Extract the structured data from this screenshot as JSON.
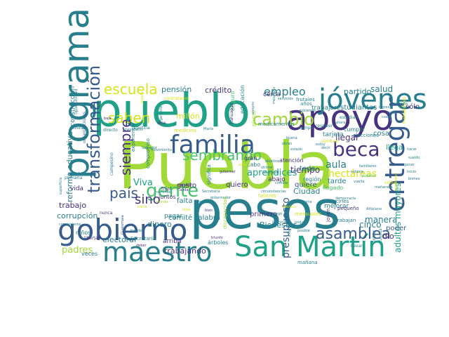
{
  "palette": {
    "dark_purple": "#46327e",
    "blue": "#365c8d",
    "teal": "#277f8e",
    "green_teal": "#1fa187",
    "green": "#4ac16d",
    "yellow_green": "#a0da39",
    "yellow": "#d6e21a",
    "background": "#ffffff"
  },
  "words": [
    {
      "text": "Puebla",
      "color": "#a0da39"
    },
    {
      "text": "pueblo",
      "color": "#1fa187"
    },
    {
      "text": "pesos",
      "color": "#277f8e"
    },
    {
      "text": "gobierno",
      "color": "#365c8d"
    },
    {
      "text": "apoyo",
      "color": "#46327e"
    },
    {
      "text": "San Martín",
      "color": "#1fa187"
    },
    {
      "text": "programa",
      "color": "#277f8e"
    },
    {
      "text": "jóvenes",
      "color": "#277f8e"
    },
    {
      "text": "familia",
      "color": "#365c8d"
    },
    {
      "text": "maestro",
      "color": "#277f8e"
    },
    {
      "text": "beca",
      "color": "#46327e"
    },
    {
      "text": "entregar",
      "color": "#365c8d"
    },
    {
      "text": "gente",
      "color": "#4ac16d"
    },
    {
      "text": "saben",
      "color": "#d6e21a"
    },
    {
      "text": "escuela",
      "color": "#d6e21a"
    },
    {
      "text": "cambio",
      "color": "#a0da39"
    },
    {
      "text": "sembrando",
      "color": "#4ac16d"
    },
    {
      "text": "transformación",
      "color": "#365c8d"
    },
    {
      "text": "país",
      "color": "#365c8d"
    },
    {
      "text": "siempre",
      "color": "#46327e"
    },
    {
      "text": "sino",
      "color": "#46327e"
    },
    {
      "text": "asamblea",
      "color": "#365c8d"
    },
    {
      "text": "empleo",
      "color": "#277f8e"
    },
    {
      "text": "aula",
      "color": "#277f8e"
    },
    {
      "text": "aprendices",
      "color": "#1fa187"
    },
    {
      "text": "hectáreas",
      "color": "#d6e21a"
    },
    {
      "text": "presupuesto",
      "color": "#365c8d"
    },
    {
      "text": "Viva",
      "color": "#1fa187"
    },
    {
      "text": "adultos mayores",
      "color": "#1fa187"
    },
    {
      "text": "reforma educativa",
      "color": "#277f8e"
    },
    {
      "text": "trabajando",
      "color": "#46327e"
    },
    {
      "text": "salud",
      "color": "#277f8e"
    },
    {
      "text": "crédito",
      "color": "#46327e"
    },
    {
      "text": "pensión",
      "color": "#277f8e"
    },
    {
      "text": "llegar",
      "color": "#46327e"
    },
    {
      "text": "tiempo",
      "color": "#46327e"
    },
    {
      "text": "partido",
      "color": "#277f8e"
    },
    {
      "text": "estudiantes",
      "color": "#277f8e"
    },
    {
      "text": "Ciudad",
      "color": "#277f8e"
    },
    {
      "text": "manera",
      "color": "#277f8e"
    },
    {
      "text": "cinco",
      "color": "#277f8e"
    },
    {
      "text": "padres",
      "color": "#a0da39"
    },
    {
      "text": "trabajo",
      "color": "#46327e"
    },
    {
      "text": "corrupción",
      "color": "#277f8e"
    },
    {
      "text": "electoral",
      "color": "#277f8e"
    },
    {
      "text": "millón",
      "color": "#d6e21a"
    },
    {
      "text": "Bienestar",
      "color": "#277f8e"
    },
    {
      "text": "primero",
      "color": "#46327e"
    },
    {
      "text": "dinero",
      "color": "#277f8e"
    },
    {
      "text": "comité",
      "color": "#277f8e"
    },
    {
      "text": "palabra",
      "color": "#277f8e"
    },
    {
      "text": "quiero",
      "color": "#46327e"
    },
    {
      "text": "toda",
      "color": "#277f8e"
    },
    {
      "text": "gusto",
      "color": "#46327e"
    },
    {
      "text": "falta",
      "color": "#277f8e"
    },
    {
      "text": "pagar",
      "color": "#277f8e"
    },
    {
      "text": "construcción",
      "color": "#277f8e"
    },
    {
      "text": "vida",
      "color": "#46327e"
    },
    {
      "text": "cosa",
      "color": "#277f8e"
    },
    {
      "text": "tarde",
      "color": "#277f8e"
    },
    {
      "text": "quiere",
      "color": "#365c8d"
    },
    {
      "text": "mejorar",
      "color": "#277f8e"
    },
    {
      "text": "tarjeta",
      "color": "#277f8e"
    },
    {
      "text": "cerca",
      "color": "#46327e"
    },
    {
      "text": "trabajar",
      "color": "#277f8e"
    },
    {
      "text": "educación",
      "color": "#277f8e"
    },
    {
      "text": "sólo",
      "color": "#46327e"
    },
    {
      "text": "poder",
      "color": "#365c8d"
    },
    {
      "text": "llega",
      "color": "#1fa187"
    },
    {
      "text": "dio",
      "color": "#46327e"
    },
    {
      "text": "abajo",
      "color": "#46327e"
    },
    {
      "text": "región",
      "color": "#277f8e"
    },
    {
      "text": "atención",
      "color": "#46327e"
    },
    {
      "text": "llegado",
      "color": "#4ac16d"
    },
    {
      "text": "cumplir",
      "color": "#277f8e"
    },
    {
      "text": "niños",
      "color": "#277f8e"
    },
    {
      "text": "veces",
      "color": "#277f8e"
    },
    {
      "text": "arriba",
      "color": "#46327e"
    },
    {
      "text": "árboles",
      "color": "#277f8e"
    },
    {
      "text": "mañana",
      "color": "#277f8e"
    },
    {
      "text": "Secretaría",
      "color": "#277f8e"
    },
    {
      "text": "medicamentos",
      "color": "#277f8e"
    },
    {
      "text": "elecciones",
      "color": "#277f8e"
    },
    {
      "text": "trabajan",
      "color": "#277f8e"
    },
    {
      "text": "decirles",
      "color": "#277f8e"
    },
    {
      "text": "pequeño",
      "color": "#46327e"
    },
    {
      "text": "joven",
      "color": "#46327e"
    },
    {
      "text": "juntos",
      "color": "#46327e"
    },
    {
      "text": "cabo",
      "color": "#277f8e"
    },
    {
      "text": "gran",
      "color": "#46327e"
    },
    {
      "text": "ayudar",
      "color": "#277f8e"
    },
    {
      "text": "primaria",
      "color": "#277f8e"
    },
    {
      "text": "libertad",
      "color": "#46327e"
    },
    {
      "text": "experiencia",
      "color": "#277f8e"
    },
    {
      "text": "compromiso",
      "color": "#277f8e"
    },
    {
      "text": "significa",
      "color": "#277f8e"
    },
    {
      "text": "seguro",
      "color": "#4ac16d"
    },
    {
      "text": "sembrar",
      "color": "#d6e21a"
    },
    {
      "text": "campo",
      "color": "#277f8e"
    },
    {
      "text": "contratados",
      "color": "#d6e21a"
    },
    {
      "text": "directo",
      "color": "#277f8e"
    },
    {
      "text": "Tlahuapan",
      "color": "#46327e"
    },
    {
      "text": "Tepetitla",
      "color": "#277f8e"
    },
    {
      "text": "estudian",
      "color": "#277f8e"
    },
    {
      "text": "resolver",
      "color": "#277f8e"
    },
    {
      "text": "frijol",
      "color": "#46327e"
    },
    {
      "text": "dice",
      "color": "#46327e"
    },
    {
      "text": "oportunidad",
      "color": "#277f8e"
    },
    {
      "text": "nunca",
      "color": "#46327e"
    },
    {
      "text": "llevar",
      "color": "#277f8e"
    },
    {
      "text": "entrar",
      "color": "#277f8e"
    },
    {
      "text": "cuenta",
      "color": "#277f8e"
    },
    {
      "text": "campesino",
      "color": "#277f8e"
    },
    {
      "text": "gobernar",
      "color": "#46327e"
    },
    {
      "text": "Secretaria",
      "color": "#277f8e"
    },
    {
      "text": "triunfo",
      "color": "#46327e"
    },
    {
      "text": "mexicanos",
      "color": "#277f8e"
    },
    {
      "text": "Salvador",
      "color": "#277f8e"
    },
    {
      "text": "movimiento",
      "color": "#277f8e"
    },
    {
      "text": "trabajadores",
      "color": "#d6e21a"
    },
    {
      "text": "organizaciones",
      "color": "#365c8d"
    },
    {
      "text": "tonelada",
      "color": "#277f8e"
    },
    {
      "text": "andar",
      "color": "#46327e"
    },
    {
      "text": "cambiar",
      "color": "#46327e"
    },
    {
      "text": "democracia",
      "color": "#277f8e"
    },
    {
      "text": "bien",
      "color": "#46327e"
    },
    {
      "text": "mercado",
      "color": "#277f8e"
    },
    {
      "text": "superficie",
      "color": "#277f8e"
    },
    {
      "text": "comerciante",
      "color": "#277f8e"
    },
    {
      "text": "fraude",
      "color": "#277f8e"
    },
    {
      "text": "deber",
      "color": "#46327e"
    },
    {
      "text": "haciendo",
      "color": "#277f8e"
    },
    {
      "text": "mundo",
      "color": "#a0da39"
    },
    {
      "text": "baja",
      "color": "#46327e"
    },
    {
      "text": "tierra",
      "color": "#d6e21a"
    },
    {
      "text": "popular",
      "color": "#d6e21a"
    },
    {
      "text": "María",
      "color": "#277f8e"
    },
    {
      "text": "Guatemala",
      "color": "#365c8d"
    },
    {
      "text": "garantía",
      "color": "#277f8e"
    },
    {
      "text": "mensual",
      "color": "#277f8e"
    },
    {
      "text": "circunstancias",
      "color": "#277f8e"
    },
    {
      "text": "poquito",
      "color": "#277f8e"
    },
    {
      "text": "ahorro",
      "color": "#277f8e"
    },
    {
      "text": "apoyos",
      "color": "#277f8e"
    },
    {
      "text": "servicios",
      "color": "#277f8e"
    },
    {
      "text": "favor",
      "color": "#277f8e"
    },
    {
      "text": "cosas",
      "color": "#277f8e"
    },
    {
      "text": "vuelta",
      "color": "#277f8e"
    },
    {
      "text": "pueblos",
      "color": "#4ac16d"
    },
    {
      "text": "Altiplano",
      "color": "#277f8e"
    },
    {
      "text": "mañanera",
      "color": "#277f8e"
    },
    {
      "text": "ingreso",
      "color": "#277f8e"
    },
    {
      "text": "necesita",
      "color": "#277f8e"
    },
    {
      "text": "utilizar",
      "color": "#277f8e"
    },
    {
      "text": "objetivo",
      "color": "#277f8e"
    },
    {
      "text": "comida",
      "color": "#277f8e"
    },
    {
      "text": "tiene",
      "color": "#277f8e"
    },
    {
      "text": "medicina",
      "color": "#d6e21a"
    },
    {
      "text": "gobernador",
      "color": "#277f8e"
    },
    {
      "text": "planta",
      "color": "#a0da39"
    },
    {
      "text": "lucha",
      "color": "#d6e21a"
    },
    {
      "text": "hacer",
      "color": "#277f8e"
    },
    {
      "text": "sueldo",
      "color": "#277f8e"
    },
    {
      "text": "ganar",
      "color": "#277f8e"
    },
    {
      "text": "inicio",
      "color": "#277f8e"
    },
    {
      "text": "bienes",
      "color": "#277f8e"
    },
    {
      "text": "capacidad",
      "color": "#d6e21a"
    },
    {
      "text": "colonia",
      "color": "#277f8e"
    },
    {
      "text": "familiares",
      "color": "#277f8e"
    },
    {
      "text": "discapacidad",
      "color": "#a0da39"
    },
    {
      "text": "frutales",
      "color": "#277f8e"
    },
    {
      "text": "gobiernos",
      "color": "#277f8e"
    },
    {
      "text": "pasado",
      "color": "#d6e21a"
    },
    {
      "text": "talleres",
      "color": "#d6e21a"
    },
    {
      "text": "efectivo",
      "color": "#d6e21a"
    },
    {
      "text": "mensuales",
      "color": "#d6e21a"
    },
    {
      "text": "terminar",
      "color": "#277f8e"
    },
    {
      "text": "mexicano",
      "color": "#277f8e"
    },
    {
      "text": "buena",
      "color": "#277f8e"
    },
    {
      "text": "obras",
      "color": "#277f8e"
    },
    {
      "text": "estado",
      "color": "#277f8e"
    },
    {
      "text": "hijos",
      "color": "#d6e21a"
    },
    {
      "text": "años",
      "color": "#277f8e"
    },
    {
      "text": "llegó",
      "color": "#277f8e"
    },
    {
      "text": "posible",
      "color": "#277f8e"
    },
    {
      "text": "estoy",
      "color": "#277f8e"
    },
    {
      "text": "decir",
      "color": "#277f8e"
    },
    {
      "text": "ahora",
      "color": "#277f8e"
    }
  ]
}
